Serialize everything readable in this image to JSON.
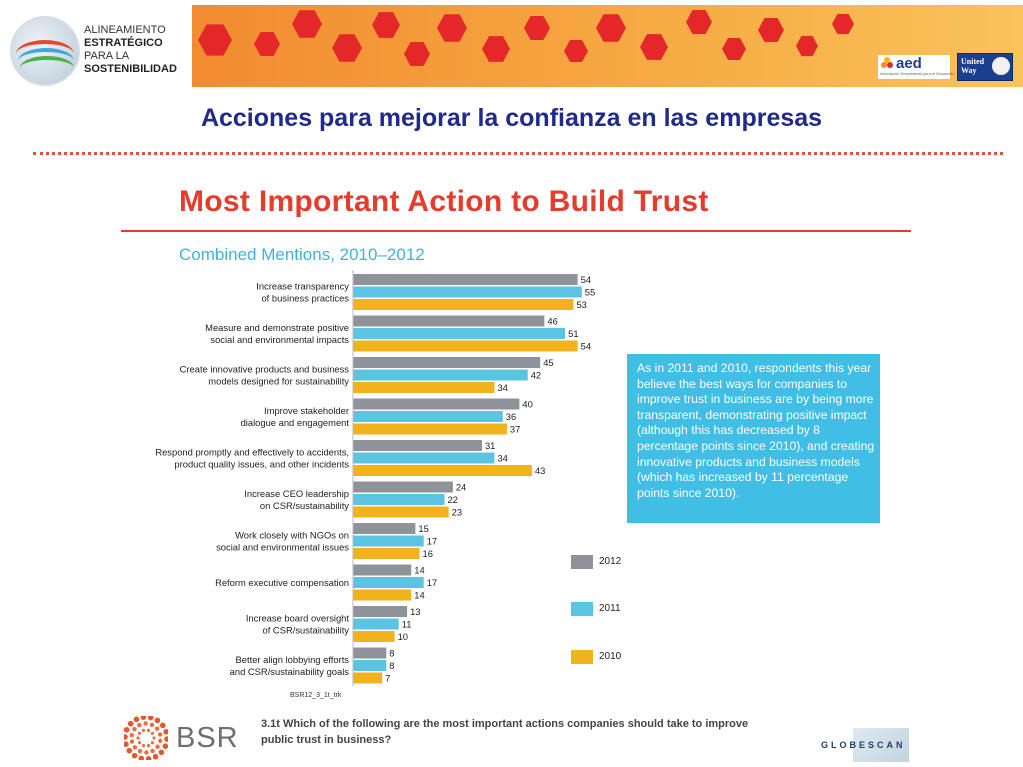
{
  "header": {
    "logo_lines": [
      "ALINEAMIENTO",
      "ESTRATÉGICO",
      "PARA LA",
      "SOSTENIBILIDAD"
    ],
    "partner_logos": [
      "aed",
      "United Way"
    ],
    "aed_subtext": "Asociación Empresarial para el Desarrollo",
    "brand_colors": {
      "orange": "#f5a13e",
      "red": "#e4282a",
      "navy": "#1b3f8f"
    }
  },
  "slide_title": "Acciones para mejorar la confianza en las empresas",
  "chart_data": {
    "type": "bar",
    "orientation": "horizontal",
    "title": "Most Important Action to Build Trust",
    "subtitle": "Combined Mentions, 2010–2012",
    "categories": [
      [
        "Increase transparency",
        "of business practices"
      ],
      [
        "Measure and demonstrate positive",
        "social and environmental impacts"
      ],
      [
        "Create innovative products and business",
        "models designed for sustainability"
      ],
      [
        "Improve stakeholder",
        "dialogue and engagement"
      ],
      [
        "Respond promptly and effectively to accidents,",
        "product quality issues, and other incidents"
      ],
      [
        "Increase CEO leadership",
        "on CSR/sustainability"
      ],
      [
        "Work closely with NGOs on",
        "social and environmental issues"
      ],
      [
        "Reform executive compensation"
      ],
      [
        "Increase board oversight",
        "of CSR/sustainability"
      ],
      [
        "Better align lobbying efforts",
        "and CSR/sustainability goals"
      ]
    ],
    "series": [
      {
        "name": "2012",
        "color": "#8f9399",
        "values": [
          54,
          46,
          45,
          40,
          31,
          24,
          15,
          14,
          13,
          8
        ]
      },
      {
        "name": "2011",
        "color": "#5bc4e2",
        "values": [
          55,
          51,
          42,
          36,
          34,
          22,
          17,
          17,
          11,
          8
        ]
      },
      {
        "name": "2010",
        "color": "#f2b21b",
        "values": [
          53,
          54,
          34,
          37,
          43,
          23,
          16,
          14,
          10,
          7
        ]
      }
    ],
    "legend_position": "right",
    "grid": false
  },
  "callout_text": "As in 2011 and 2010, respondents this year believe the best ways for companies to improve trust in business are by being more transparent, demonstrating positive impact (although this has decreased by 8 percentage points since 2010), and creating innovative products and business models (which has increased by 11 percentage points since 2010).",
  "legend": [
    {
      "label": "2012",
      "color": "#8f9399"
    },
    {
      "label": "2011",
      "color": "#5bc4e2"
    },
    {
      "label": "2010",
      "color": "#f2b21b"
    }
  ],
  "source_code": "BSR12_3_1t_trk",
  "question": "3.1t Which of the following are the most important actions companies should take to improve public trust in business?",
  "footer": {
    "bsr_label": "BSR",
    "globescan_label": "GLOBESCAN"
  }
}
